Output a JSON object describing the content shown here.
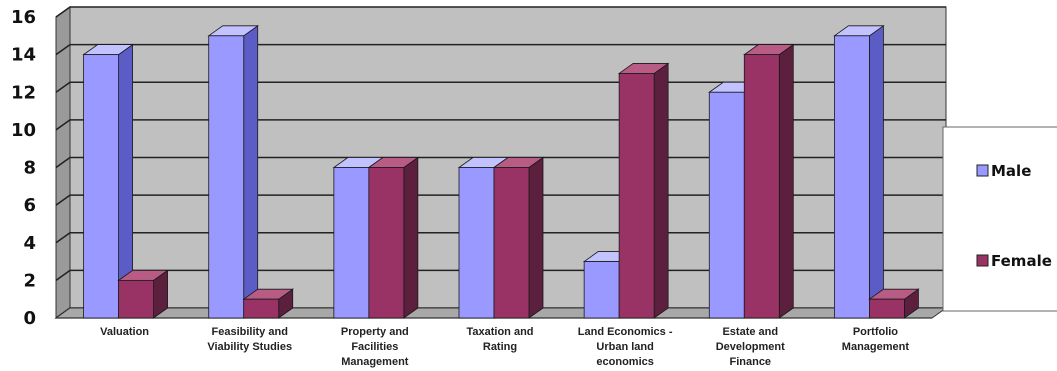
{
  "chart_data": {
    "type": "bar",
    "categories": [
      [
        "Valuation"
      ],
      [
        "Feasibility and",
        "Viability Studies"
      ],
      [
        "Property and",
        "Facilities",
        "Management"
      ],
      [
        "Taxation and",
        "Rating"
      ],
      [
        "Land Economics -",
        "Urban land",
        "economics"
      ],
      [
        "Estate and",
        "Development",
        "Finance"
      ],
      [
        "Portfolio",
        "Management"
      ]
    ],
    "series": [
      {
        "name": "Male",
        "values": [
          14,
          15,
          8,
          8,
          3,
          12,
          15
        ]
      },
      {
        "name": "Female",
        "values": [
          2,
          1,
          8,
          8,
          13,
          14,
          1
        ]
      }
    ],
    "colors": {
      "male_front": "#9999ff",
      "male_side": "#5c5cc6",
      "male_top": "#c2c2ff",
      "female_front": "#993366",
      "female_side": "#5c1f3d",
      "female_top": "#b85c85",
      "wall": "#c0c0c0",
      "floor": "#a8a8a8"
    },
    "yticks": [
      "0",
      "2",
      "4",
      "6",
      "8",
      "10",
      "12",
      "14",
      "16"
    ],
    "ylim": [
      0,
      16
    ],
    "grid": true,
    "legend_position": "right",
    "style": "3d-clustered-column"
  }
}
